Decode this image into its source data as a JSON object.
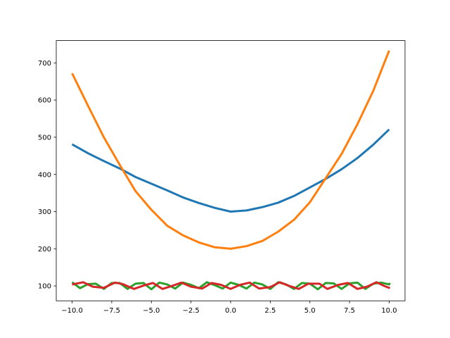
{
  "chart_data": {
    "type": "line",
    "title": "",
    "xlabel": "",
    "ylabel": "",
    "xlim": [
      -11.0,
      11.0
    ],
    "ylim": [
      60,
      760
    ],
    "grid": false,
    "x_ticks": [
      -10.0,
      -7.5,
      -5.0,
      -2.5,
      0.0,
      2.5,
      5.0,
      7.5,
      10.0
    ],
    "x_tick_labels": [
      "−10.0",
      "−7.5",
      "−5.0",
      "−2.5",
      "0.0",
      "2.5",
      "5.0",
      "7.5",
      "10.0"
    ],
    "y_ticks": [
      100,
      200,
      300,
      400,
      500,
      600,
      700
    ],
    "y_tick_labels": [
      "100",
      "200",
      "300",
      "400",
      "500",
      "600",
      "700"
    ],
    "series": [
      {
        "color": "#1f77b4",
        "points": [
          [
            -10,
            481
          ],
          [
            -9,
            457
          ],
          [
            -8,
            436
          ],
          [
            -7,
            416
          ],
          [
            -6,
            393
          ],
          [
            -5,
            375
          ],
          [
            -4,
            357
          ],
          [
            -3,
            338
          ],
          [
            -2,
            323
          ],
          [
            -1,
            310
          ],
          [
            0,
            300
          ],
          [
            1,
            303
          ],
          [
            2,
            312
          ],
          [
            3,
            324
          ],
          [
            4,
            342
          ],
          [
            5,
            365
          ],
          [
            6,
            388
          ],
          [
            7,
            414
          ],
          [
            8,
            444
          ],
          [
            9,
            480
          ],
          [
            10,
            521
          ]
        ]
      },
      {
        "color": "#ff7f0e",
        "points": [
          [
            -10,
            672
          ],
          [
            -9,
            585
          ],
          [
            -8,
            500
          ],
          [
            -7,
            426
          ],
          [
            -6,
            355
          ],
          [
            -5,
            305
          ],
          [
            -4,
            262
          ],
          [
            -3,
            236
          ],
          [
            -2,
            217
          ],
          [
            -1,
            204
          ],
          [
            0,
            200
          ],
          [
            1,
            207
          ],
          [
            2,
            221
          ],
          [
            3,
            246
          ],
          [
            4,
            278
          ],
          [
            5,
            325
          ],
          [
            6,
            390
          ],
          [
            7,
            455
          ],
          [
            8,
            535
          ],
          [
            9,
            625
          ],
          [
            10,
            733
          ]
        ]
      },
      {
        "color": "#2ca02c",
        "points": [
          [
            -10,
            110
          ],
          [
            -9.5,
            94
          ],
          [
            -9,
            105
          ],
          [
            -8.5,
            106
          ],
          [
            -8,
            92
          ],
          [
            -7.5,
            108
          ],
          [
            -7,
            108
          ],
          [
            -6.5,
            92
          ],
          [
            -6,
            106
          ],
          [
            -5.5,
            108
          ],
          [
            -5,
            91
          ],
          [
            -4.5,
            109
          ],
          [
            -4,
            104
          ],
          [
            -3.5,
            93
          ],
          [
            -3,
            109
          ],
          [
            -2.5,
            103
          ],
          [
            -2,
            94
          ],
          [
            -1.5,
            110
          ],
          [
            -1,
            102
          ],
          [
            -0.5,
            93
          ],
          [
            0,
            109
          ],
          [
            0.5,
            103
          ],
          [
            1,
            93
          ],
          [
            1.5,
            109
          ],
          [
            2,
            104
          ],
          [
            2.5,
            92
          ],
          [
            3,
            110
          ],
          [
            3.5,
            104
          ],
          [
            4,
            92
          ],
          [
            4.5,
            108
          ],
          [
            5,
            106
          ],
          [
            5.5,
            91
          ],
          [
            6,
            108
          ],
          [
            6.5,
            107
          ],
          [
            7,
            92
          ],
          [
            7.5,
            107
          ],
          [
            8,
            109
          ],
          [
            8.5,
            92
          ],
          [
            9,
            106
          ],
          [
            9.5,
            109
          ],
          [
            10,
            104
          ],
          [
            10.05,
            108
          ]
        ]
      },
      {
        "color": "#d62728",
        "points": [
          [
            -10,
            104
          ],
          [
            -9.3,
            110
          ],
          [
            -8.7,
            98
          ],
          [
            -8,
            95
          ],
          [
            -7.3,
            109
          ],
          [
            -6.8,
            105
          ],
          [
            -6.1,
            92
          ],
          [
            -5.5,
            101
          ],
          [
            -4.9,
            108
          ],
          [
            -4.3,
            92
          ],
          [
            -3.7,
            100
          ],
          [
            -3.1,
            109
          ],
          [
            -2.5,
            98
          ],
          [
            -1.8,
            93
          ],
          [
            -1.2,
            108
          ],
          [
            -0.6,
            103
          ],
          [
            0,
            92
          ],
          [
            0.6,
            103
          ],
          [
            1.2,
            109
          ],
          [
            1.8,
            93
          ],
          [
            2.5,
            97
          ],
          [
            3.1,
            110
          ],
          [
            3.7,
            100
          ],
          [
            4.3,
            92
          ],
          [
            4.9,
            106
          ],
          [
            5.6,
            106
          ],
          [
            6.1,
            92
          ],
          [
            6.8,
            103
          ],
          [
            7.4,
            108
          ],
          [
            8,
            92
          ],
          [
            8.6,
            98
          ],
          [
            9.2,
            110
          ],
          [
            9.7,
            100
          ],
          [
            10.05,
            94
          ]
        ]
      }
    ]
  }
}
